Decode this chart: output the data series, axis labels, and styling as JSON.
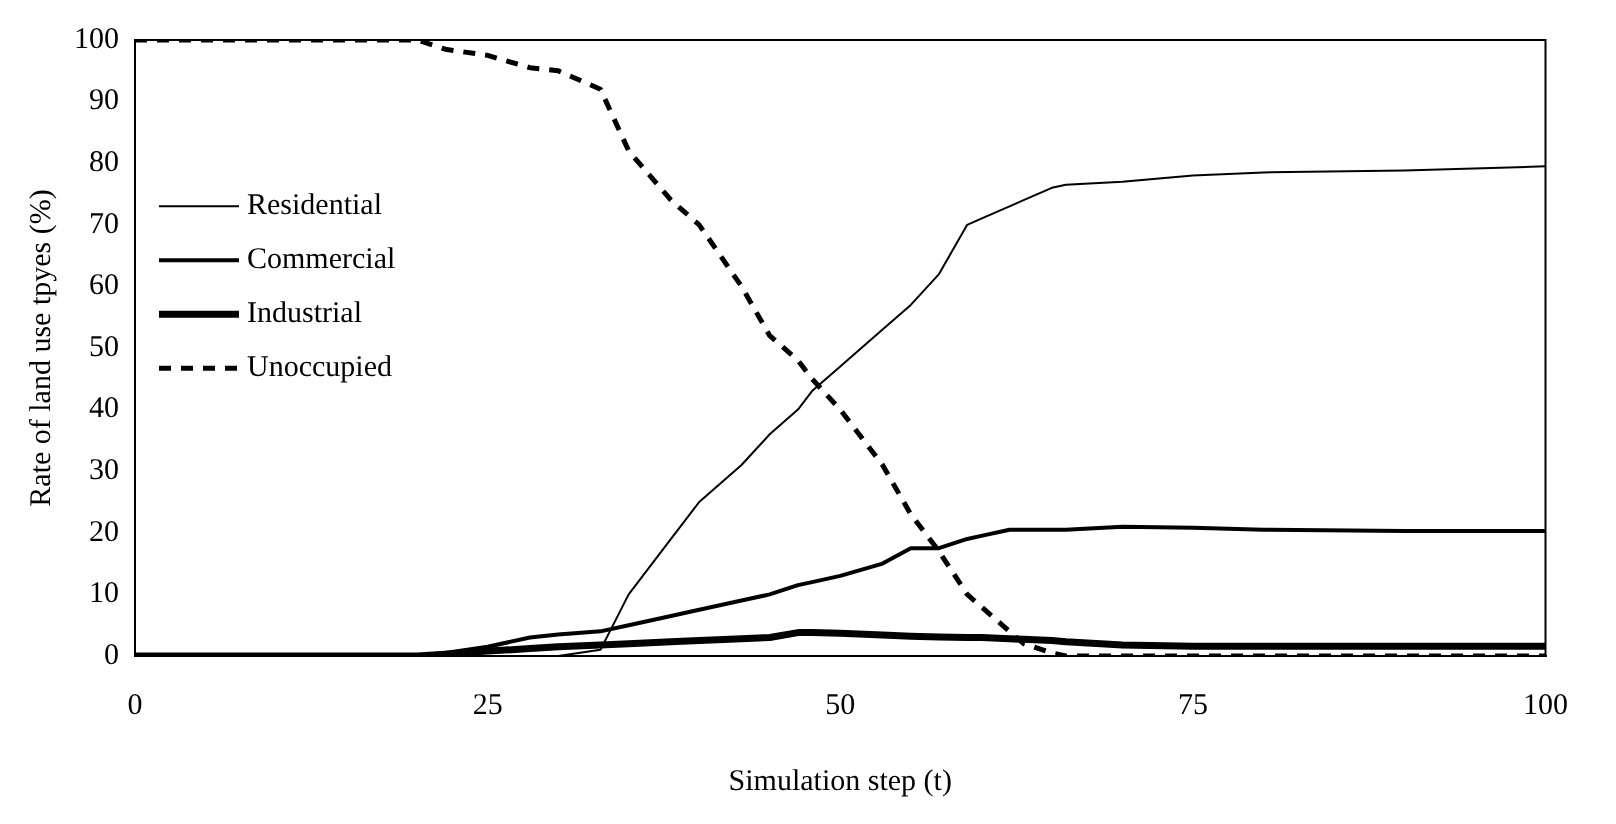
{
  "chart_data": {
    "type": "line",
    "xlabel": "Simulation step (t)",
    "ylabel": "Rate of land use tpyes (%)",
    "x": [
      0,
      10,
      20,
      22,
      25,
      28,
      30,
      33,
      35,
      38,
      40,
      43,
      45,
      47,
      48,
      50,
      53,
      55,
      57,
      59,
      60,
      62,
      63,
      65,
      66,
      70,
      75,
      80,
      90,
      100
    ],
    "xlim": [
      0,
      100
    ],
    "xticks": [
      0,
      25,
      50,
      75,
      100
    ],
    "ylim": [
      0,
      100
    ],
    "yticks": [
      0,
      10,
      20,
      30,
      40,
      50,
      60,
      70,
      80,
      90,
      100
    ],
    "grid": false,
    "legend": "left",
    "marker": "none",
    "series": [
      {
        "name": "Residential",
        "color": "#000000",
        "line_style": "solid",
        "values": [
          0,
          0,
          0,
          0,
          0,
          0,
          0,
          1,
          10,
          19,
          25,
          31,
          36,
          40,
          43,
          47,
          53,
          57,
          62,
          70,
          71,
          73,
          74,
          76,
          76.5,
          77,
          78,
          78.5,
          78.8,
          79.5
        ]
      },
      {
        "name": "Commercial",
        "color": "#000000",
        "line_style": "solid",
        "values": [
          0,
          0,
          0,
          0.5,
          1.5,
          3,
          3.5,
          4,
          5,
          6.5,
          7.5,
          9,
          10,
          11.5,
          12,
          13,
          15,
          17.5,
          17.5,
          19,
          19.5,
          20.5,
          20.5,
          20.5,
          20.5,
          21,
          20.8,
          20.5,
          20.3,
          20.3
        ]
      },
      {
        "name": "Industrial",
        "color": "#000000",
        "line_style": "solid",
        "values": [
          0,
          0,
          0,
          0.3,
          0.8,
          1.2,
          1.5,
          1.8,
          2,
          2.3,
          2.5,
          2.8,
          3,
          3.8,
          3.8,
          3.7,
          3.4,
          3.2,
          3.1,
          3,
          3,
          2.8,
          2.7,
          2.5,
          2.3,
          1.8,
          1.6,
          1.6,
          1.6,
          1.6
        ]
      },
      {
        "name": "Unoccupied",
        "color": "#000000",
        "line_style": "dashed",
        "values": [
          100,
          100,
          100,
          98.5,
          97.5,
          95.5,
          95,
          92,
          82,
          74,
          70,
          60,
          52,
          48,
          45,
          40,
          31,
          23,
          17,
          10,
          8,
          4,
          2,
          0.5,
          0,
          0,
          0,
          0,
          0,
          0
        ]
      }
    ]
  }
}
